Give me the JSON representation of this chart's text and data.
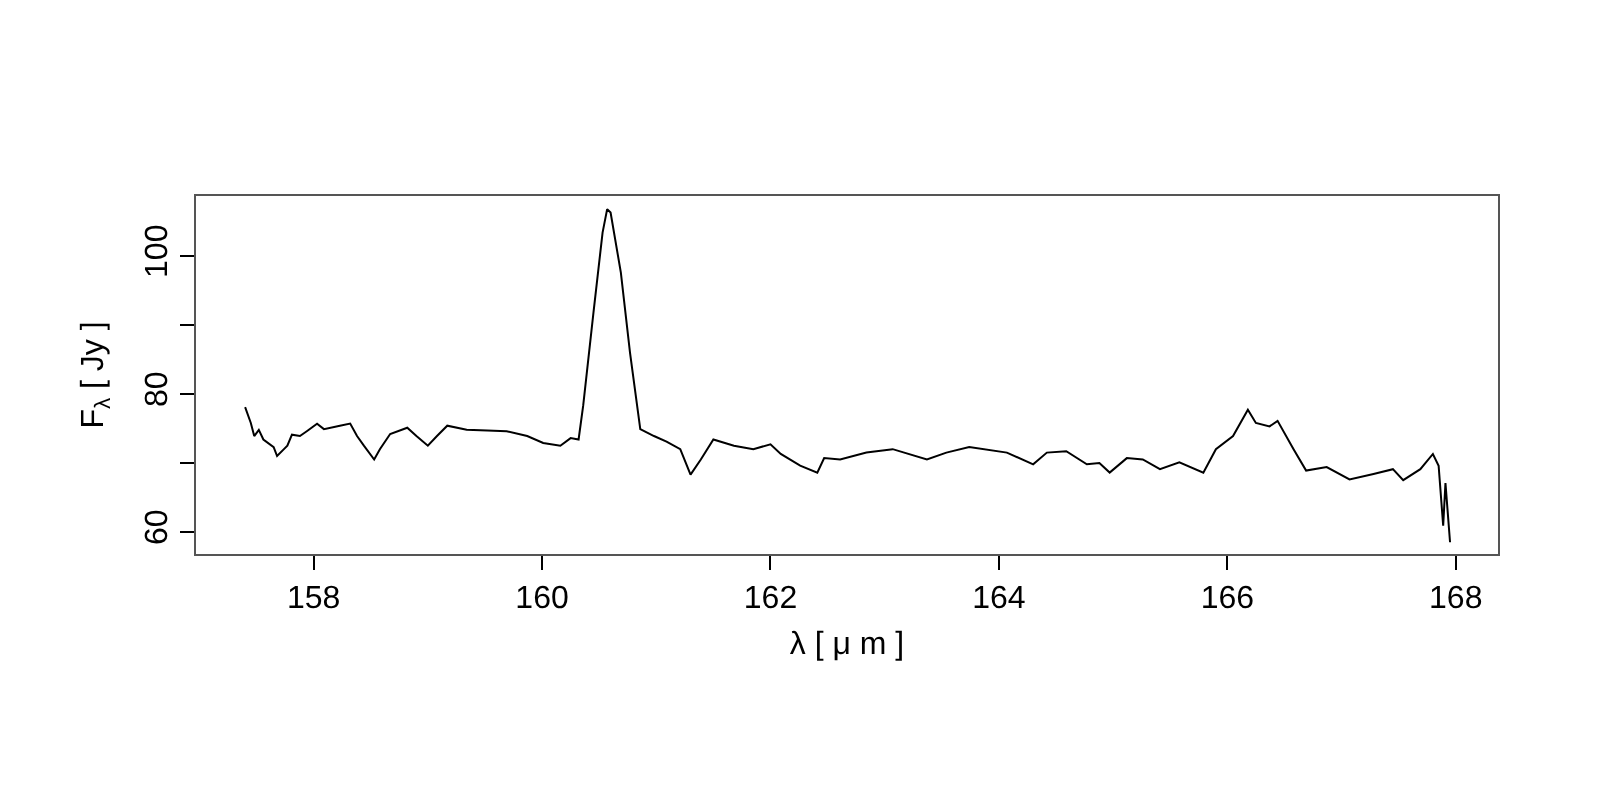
{
  "chart_data": {
    "type": "line",
    "xlabel": "λ [ μ m ]",
    "ylabel": "F$_{λ}$ [ Jy ]",
    "xlim": [
      156.97,
      168.37
    ],
    "xticks": [
      158,
      160,
      162,
      164,
      166,
      168
    ],
    "ylim": [
      56.8,
      108.7
    ],
    "yticks": [
      60,
      {
        "value": 70,
        "label": null
      },
      80,
      {
        "value": 90,
        "label": null
      },
      100
    ],
    "grid": false,
    "marker": "none",
    "line_style": "solid",
    "series": [
      {
        "color": "#000000",
        "x": [
          157.4,
          157.45,
          157.48,
          157.52,
          157.56,
          157.65,
          157.68,
          157.74,
          157.77,
          157.81,
          157.88,
          157.94,
          158.03,
          158.09,
          158.23,
          158.32,
          158.38,
          158.44,
          158.53,
          158.58,
          158.67,
          158.82,
          158.9,
          159.0,
          159.08,
          159.17,
          159.34,
          159.52,
          159.69,
          159.87,
          160.01,
          160.16,
          160.25,
          160.32,
          160.36,
          160.45,
          160.53,
          160.57,
          160.6,
          160.69,
          160.77,
          160.86,
          160.98,
          161.09,
          161.21,
          161.3,
          161.39,
          161.5,
          161.68,
          161.85,
          162.0,
          162.09,
          162.26,
          162.41,
          162.47,
          162.61,
          162.84,
          163.07,
          163.37,
          163.54,
          163.74,
          164.07,
          164.3,
          164.42,
          164.59,
          164.77,
          164.88,
          164.97,
          165.12,
          165.26,
          165.41,
          165.58,
          165.79,
          165.9,
          166.05,
          166.18,
          166.25,
          166.37,
          166.44,
          166.58,
          166.69,
          166.87,
          167.07,
          167.28,
          167.45,
          167.54,
          167.69,
          167.8,
          167.85,
          167.89,
          167.91,
          167.95
        ],
        "values": [
          78.1,
          75.8,
          73.9,
          74.8,
          73.4,
          72.3,
          71.0,
          72.0,
          72.5,
          74.1,
          73.9,
          74.6,
          75.7,
          74.9,
          75.4,
          75.7,
          73.9,
          72.5,
          70.5,
          72.0,
          74.2,
          75.1,
          73.9,
          72.5,
          73.9,
          75.4,
          74.8,
          74.7,
          74.6,
          73.9,
          72.9,
          72.5,
          73.6,
          73.4,
          78.3,
          91.8,
          103.4,
          106.8,
          106.3,
          97.6,
          86.0,
          74.9,
          73.9,
          73.1,
          72.0,
          68.3,
          70.5,
          73.4,
          72.5,
          72.0,
          72.7,
          71.3,
          69.6,
          68.6,
          70.7,
          70.5,
          71.5,
          72.0,
          70.5,
          71.5,
          72.3,
          71.5,
          69.8,
          71.5,
          71.7,
          69.8,
          70.0,
          68.6,
          70.7,
          70.5,
          69.1,
          70.1,
          68.6,
          72.0,
          73.9,
          77.7,
          75.8,
          75.3,
          76.1,
          72.0,
          68.9,
          69.4,
          67.6,
          68.4,
          69.1,
          67.5,
          69.1,
          71.3,
          69.6,
          60.9,
          67.1,
          58.5
        ]
      }
    ]
  }
}
